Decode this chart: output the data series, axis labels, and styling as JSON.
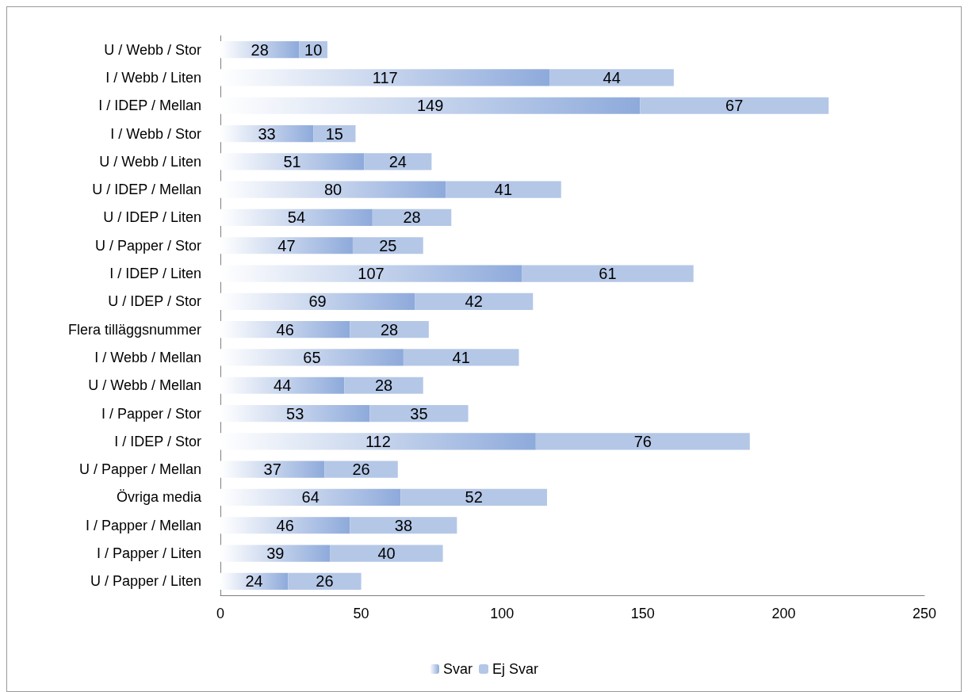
{
  "chart_data": {
    "type": "bar",
    "orientation": "horizontal",
    "stacked": true,
    "data_labels": true,
    "grid": false,
    "legend": "bottom",
    "categories": [
      "U / Webb / Stor",
      "I / Webb / Liten",
      "I / IDEP / Mellan",
      "I / Webb / Stor",
      "U / Webb / Liten",
      "U / IDEP / Mellan",
      "U / IDEP / Liten",
      "U / Papper / Stor",
      "I / IDEP / Liten",
      "U / IDEP / Stor",
      "Flera tilläggsnummer",
      "I / Webb / Mellan",
      "U / Webb / Mellan",
      "I / Papper / Stor",
      "I / IDEP / Stor",
      "U / Papper / Mellan",
      "Övriga media",
      "I / Papper / Mellan",
      "I / Papper / Liten",
      "U / Papper / Liten"
    ],
    "series": [
      {
        "name": "Svar",
        "color": "#8eaadb",
        "values": [
          28,
          117,
          149,
          33,
          51,
          80,
          54,
          47,
          107,
          69,
          46,
          65,
          44,
          53,
          112,
          37,
          64,
          46,
          39,
          24
        ]
      },
      {
        "name": "Ej Svar",
        "color": "#b4c7e7",
        "values": [
          10,
          44,
          67,
          15,
          24,
          41,
          28,
          25,
          61,
          42,
          28,
          41,
          28,
          35,
          76,
          26,
          52,
          38,
          40,
          26
        ]
      }
    ],
    "xlim": [
      0,
      250
    ],
    "xticks": [
      0,
      50,
      100,
      150,
      200,
      250
    ]
  }
}
